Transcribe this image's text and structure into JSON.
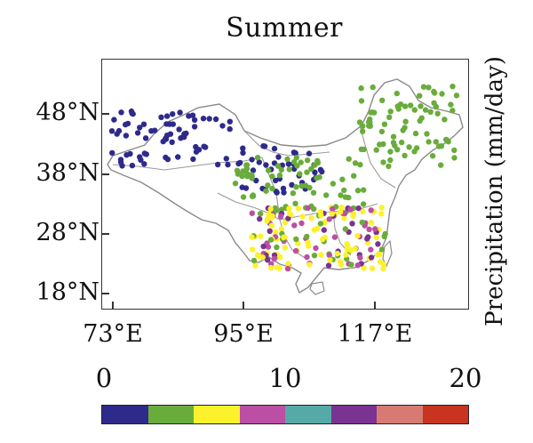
{
  "title": "Summer",
  "colorbar_label": "Precipitation (mm/day)",
  "lat_labels": [
    "48°N",
    "38°N",
    "28°N",
    "18°N"
  ],
  "lon_labels": [
    "73°E",
    "95°E",
    "117°E"
  ],
  "colorbar": {
    "tick_labels": [
      "0",
      "10",
      "20"
    ],
    "min": 0,
    "max": 20,
    "bins": 8,
    "colors": [
      "#2e2a8c",
      "#6aac3b",
      "#fbf22b",
      "#bb4fa4",
      "#55aaa8",
      "#7a3390",
      "#d77b72",
      "#c8341f"
    ]
  },
  "legend_placement": "bottom",
  "regions": {
    "northwest": "#2e2a8c",
    "north_and_northeast": "#6aac3b",
    "south": "#fbf22b"
  },
  "south_mix_colors": [
    "#fbf22b",
    "#bb4fa4",
    "#7a3390",
    "#6aac3b"
  ]
}
